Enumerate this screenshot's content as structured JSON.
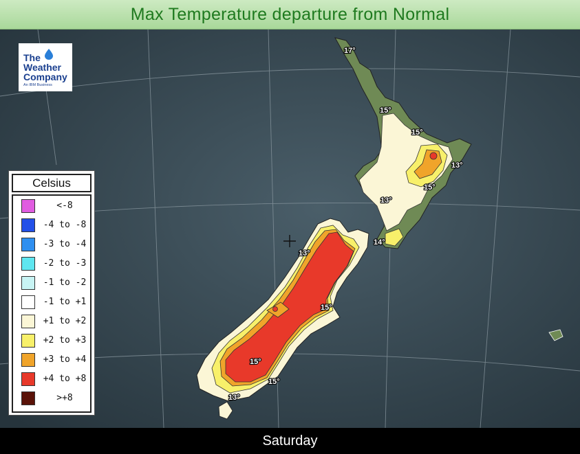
{
  "title": "Max Temperature departure from Normal",
  "footer": {
    "day": "Saturday"
  },
  "logo": {
    "line1": "The",
    "line2": "Weather",
    "line3": "Company",
    "tagline": "An IBM Business",
    "icon": "water-drop-icon"
  },
  "legend": {
    "heading": "Celsius",
    "items": [
      {
        "label": "<-8",
        "color": "#e05ce0"
      },
      {
        "label": "-4 to -8",
        "color": "#2350e8"
      },
      {
        "label": "-3 to -4",
        "color": "#2f8ff0"
      },
      {
        "label": "-2 to -3",
        "color": "#5fe6f0"
      },
      {
        "label": "-1 to -2",
        "color": "#c8f4f4"
      },
      {
        "label": "-1 to +1",
        "color": "#ffffff"
      },
      {
        "label": "+1 to +2",
        "color": "#fbf6d6"
      },
      {
        "label": "+2 to +3",
        "color": "#f8f06a"
      },
      {
        "label": "+3 to +4",
        "color": "#f0a42a"
      },
      {
        "label": "+4 to +8",
        "color": "#e8392a"
      },
      {
        "label": ">+8",
        "color": "#5a1208"
      }
    ]
  },
  "temperature_labels": [
    "17°",
    "15°",
    "15°",
    "13°",
    "15°",
    "13°",
    "14°",
    "13°",
    "15°",
    "15°",
    "15°",
    "13°"
  ]
}
